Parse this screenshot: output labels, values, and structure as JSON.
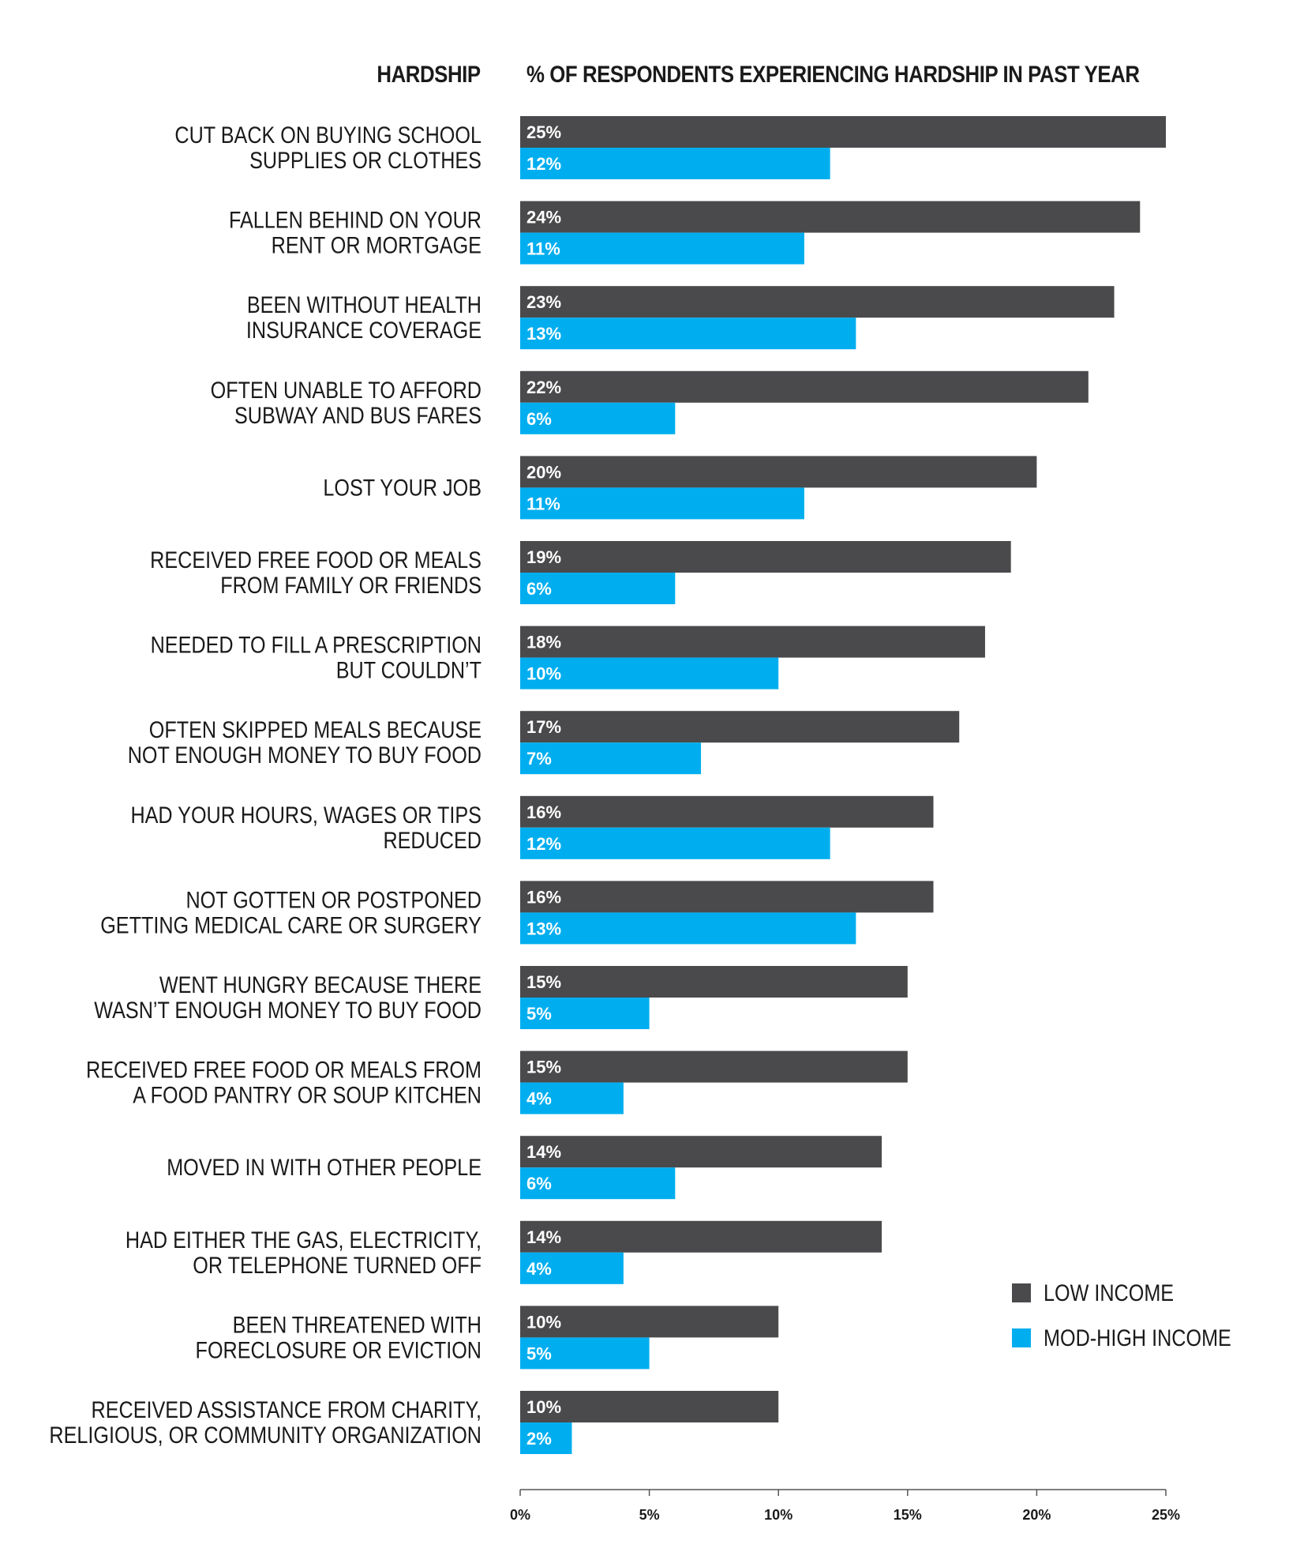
{
  "header": {
    "left_title": "HARDSHIP",
    "right_title": "% OF RESPONDENTS EXPERIENCING HARDSHIP IN PAST YEAR"
  },
  "colors": {
    "low_income": "#4a4a4c",
    "mod_high_income": "#00aeef",
    "axis": "#555555"
  },
  "chart_data": {
    "type": "bar",
    "orientation": "horizontal",
    "categories": [
      [
        "CUT BACK ON BUYING SCHOOL",
        "SUPPLIES OR CLOTHES"
      ],
      [
        "FALLEN BEHIND ON YOUR",
        "RENT OR MORTGAGE"
      ],
      [
        "BEEN WITHOUT HEALTH",
        "INSURANCE COVERAGE"
      ],
      [
        "OFTEN UNABLE TO AFFORD",
        "SUBWAY AND BUS FARES"
      ],
      [
        "LOST YOUR JOB"
      ],
      [
        "RECEIVED FREE FOOD OR MEALS",
        "FROM FAMILY OR FRIENDS"
      ],
      [
        "NEEDED TO FILL A PRESCRIPTION",
        "BUT COULDN’T"
      ],
      [
        "OFTEN SKIPPED MEALS BECAUSE",
        "NOT ENOUGH MONEY TO BUY FOOD"
      ],
      [
        "HAD YOUR HOURS, WAGES OR TIPS",
        "REDUCED"
      ],
      [
        "NOT GOTTEN OR POSTPONED",
        "GETTING MEDICAL CARE OR SURGERY"
      ],
      [
        "WENT HUNGRY BECAUSE THERE",
        "WASN’T ENOUGH MONEY TO BUY FOOD"
      ],
      [
        "RECEIVED FREE FOOD OR MEALS FROM",
        "A FOOD PANTRY OR SOUP KITCHEN"
      ],
      [
        "MOVED IN WITH OTHER PEOPLE"
      ],
      [
        "HAD EITHER THE GAS, ELECTRICITY,",
        "OR TELEPHONE TURNED OFF"
      ],
      [
        "BEEN THREATENED WITH",
        "FORECLOSURE OR EVICTION"
      ],
      [
        "RECEIVED ASSISTANCE FROM CHARITY,",
        "RELIGIOUS, OR COMMUNITY ORGANIZATION"
      ]
    ],
    "series": [
      {
        "name": "LOW INCOME",
        "values": [
          25,
          24,
          23,
          22,
          20,
          19,
          18,
          17,
          16,
          16,
          15,
          15,
          14,
          14,
          10,
          10
        ],
        "labels": [
          "25%",
          "24%",
          "23%",
          "22%",
          "20%",
          "19%",
          "18%",
          "17%",
          "16%",
          "16%",
          "15%",
          "15%",
          "14%",
          "14%",
          "10%",
          "10%"
        ]
      },
      {
        "name": "MOD-HIGH INCOME",
        "values": [
          12,
          11,
          13,
          6,
          11,
          6,
          10,
          7,
          12,
          13,
          5,
          4,
          6,
          4,
          5,
          2
        ],
        "labels": [
          "12%",
          "11%",
          "13%",
          "6%",
          "11%",
          "6%",
          "10%",
          "7%",
          "12%",
          "13%",
          "5%",
          "4%",
          "6%",
          "4%",
          "5%",
          "2%"
        ]
      }
    ],
    "xlim": [
      0,
      25
    ],
    "xticks": [
      0,
      5,
      10,
      15,
      20,
      25
    ],
    "xtick_labels": [
      "0%",
      "5%",
      "10%",
      "15%",
      "20%",
      "25%"
    ],
    "grid": false,
    "legend": "bottom-right"
  }
}
